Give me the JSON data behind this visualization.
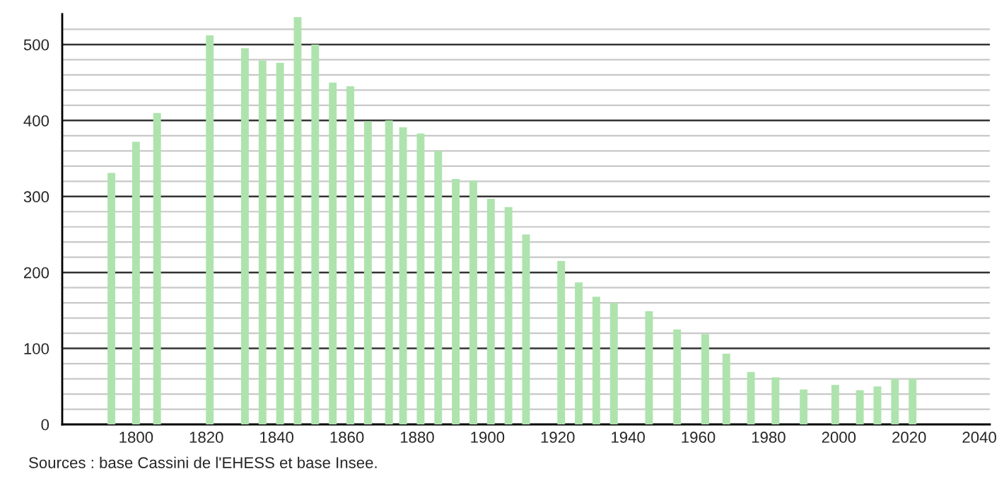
{
  "chart_data": {
    "type": "bar",
    "color": "#aee3ae",
    "x": [
      1793,
      1800,
      1806,
      1821,
      1831,
      1836,
      1841,
      1846,
      1851,
      1856,
      1861,
      1866,
      1872,
      1876,
      1881,
      1886,
      1891,
      1896,
      1901,
      1906,
      1911,
      1921,
      1926,
      1931,
      1936,
      1946,
      1954,
      1962,
      1968,
      1975,
      1982,
      1990,
      1999,
      2006,
      2011,
      2016,
      2021
    ],
    "values": [
      331,
      372,
      410,
      512,
      495,
      479,
      476,
      536,
      500,
      450,
      445,
      399,
      400,
      391,
      383,
      360,
      323,
      321,
      297,
      286,
      250,
      215,
      187,
      168,
      160,
      149,
      125,
      119,
      93,
      69,
      62,
      46,
      52,
      45,
      50,
      60,
      60
    ],
    "xlim": [
      1779,
      2043
    ],
    "xticks": [
      1800,
      1820,
      1840,
      1860,
      1880,
      1900,
      1920,
      1940,
      1960,
      1980,
      2000,
      2020,
      2040
    ],
    "ylim": [
      0,
      540
    ],
    "yticks": [
      0,
      {
        "value": 20,
        "label": null
      },
      {
        "value": 40,
        "label": null
      },
      {
        "value": 60,
        "label": null
      },
      {
        "value": 80,
        "label": null
      },
      100,
      {
        "value": 120,
        "label": null
      },
      {
        "value": 140,
        "label": null
      },
      {
        "value": 160,
        "label": null
      },
      {
        "value": 180,
        "label": null
      },
      200,
      {
        "value": 220,
        "label": null
      },
      {
        "value": 240,
        "label": null
      },
      {
        "value": 260,
        "label": null
      },
      {
        "value": 280,
        "label": null
      },
      300,
      {
        "value": 320,
        "label": null
      },
      {
        "value": 340,
        "label": null
      },
      {
        "value": 360,
        "label": null
      },
      {
        "value": 380,
        "label": null
      },
      400,
      {
        "value": 420,
        "label": null
      },
      {
        "value": 440,
        "label": null
      },
      {
        "value": 460,
        "label": null
      },
      {
        "value": 480,
        "label": null
      },
      500,
      {
        "value": 520,
        "label": null
      }
    ],
    "grid": "y",
    "annotations": [
      "Sources : base Cassini de l'EHESS et base Insee."
    ]
  }
}
